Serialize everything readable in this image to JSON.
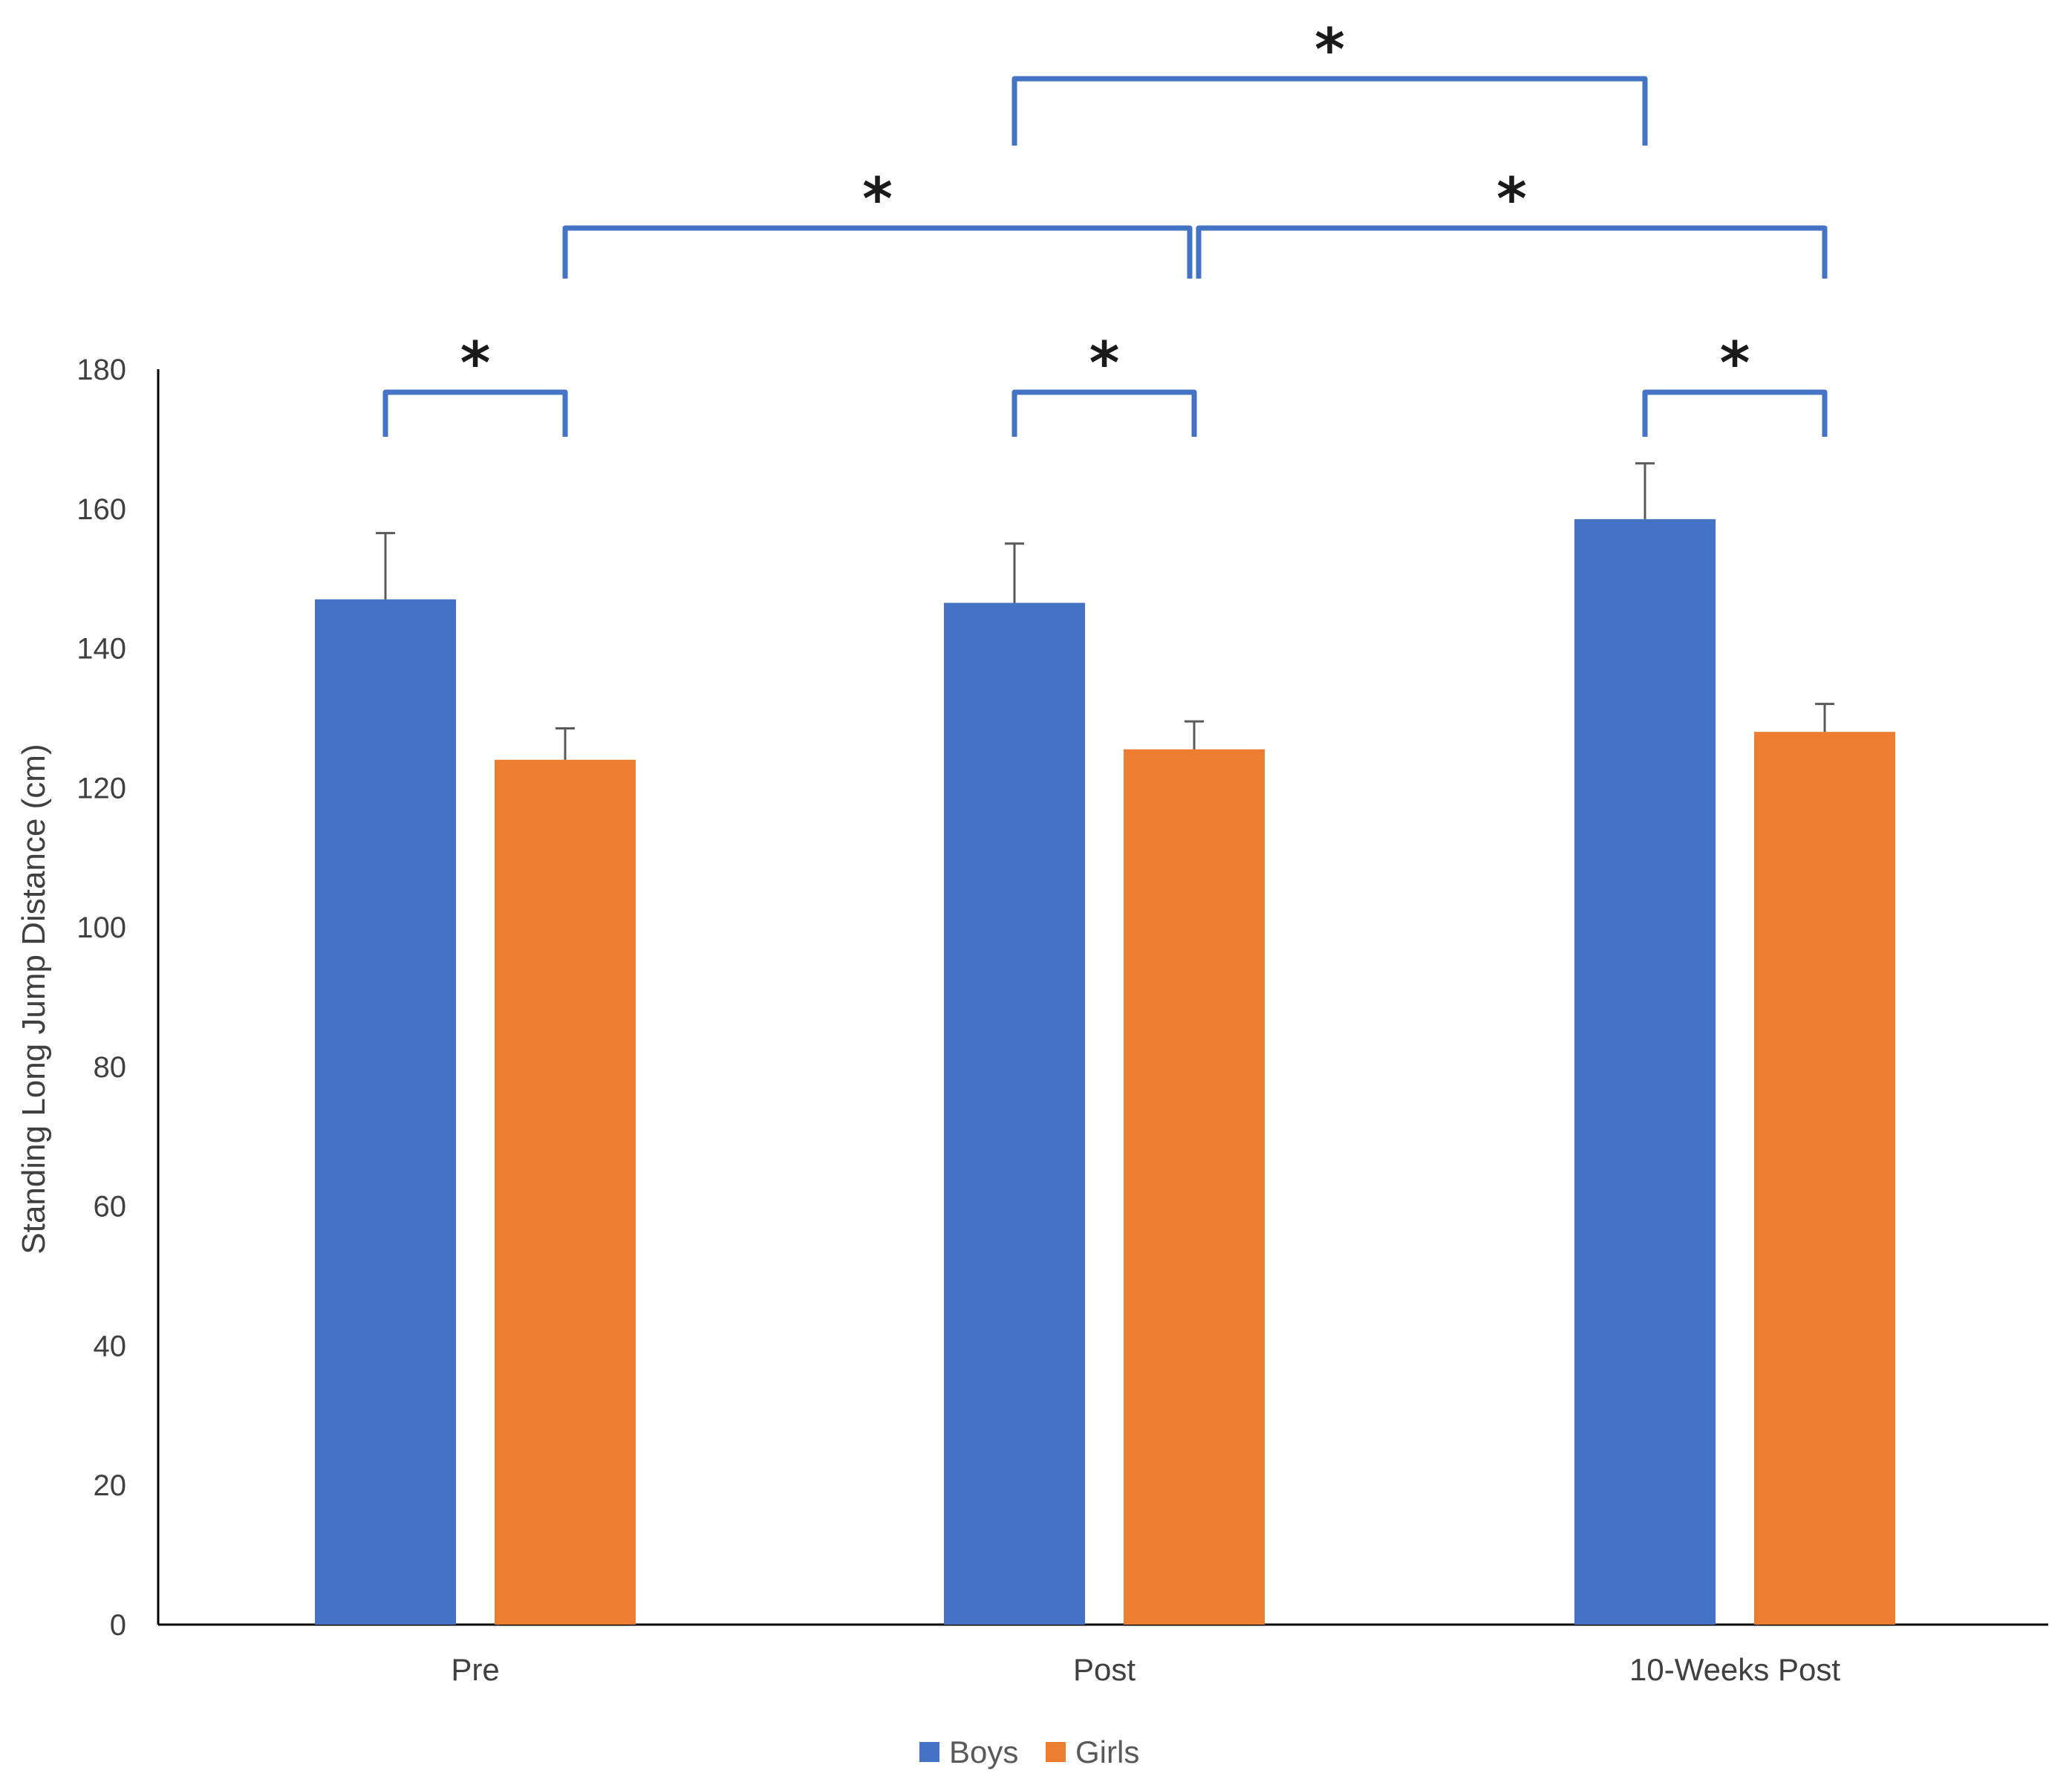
{
  "chart_data": {
    "type": "bar",
    "title": "",
    "xlabel": "",
    "ylabel": "Standing Long Jump Distance (cm)",
    "ylim": [
      0,
      180
    ],
    "yticks": [
      0,
      20,
      40,
      60,
      80,
      100,
      120,
      140,
      160,
      180
    ],
    "categories": [
      "Pre",
      "Post",
      "10-Weeks Post"
    ],
    "series": [
      {
        "name": "Boys",
        "color": "#4472C4",
        "values": [
          147,
          146.5,
          158.5
        ],
        "error": [
          9.5,
          8.5,
          8
        ]
      },
      {
        "name": "Girls",
        "color": "#ED7D31",
        "values": [
          124,
          125.5,
          128
        ],
        "error": [
          4.5,
          4,
          4
        ]
      }
    ],
    "legend": {
      "position": "bottom-center",
      "entries": [
        "Boys",
        "Girls"
      ]
    },
    "grid": false,
    "significance": [
      {
        "label": "*",
        "from": "Pre-Boys",
        "to": "Pre-Girls"
      },
      {
        "label": "*",
        "from": "Post-Boys",
        "to": "Post-Girls"
      },
      {
        "label": "*",
        "from": "10-Weeks Post-Boys",
        "to": "10-Weeks Post-Girls"
      },
      {
        "label": "*",
        "from": "Pre-Girls",
        "to": "Post-Girls"
      },
      {
        "label": "*",
        "from": "Post-Girls",
        "to": "10-Weeks Post-Girls"
      },
      {
        "label": "*",
        "from": "Post-Boys",
        "to": "10-Weeks Post-Boys"
      }
    ],
    "bracket_color": "#4472C4"
  }
}
